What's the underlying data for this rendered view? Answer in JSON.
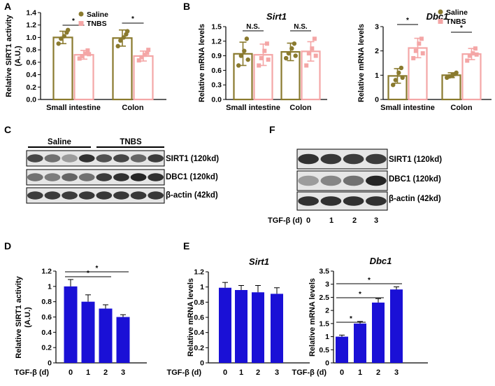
{
  "panels": {
    "A": "A",
    "B": "B",
    "C": "C",
    "D": "D",
    "E": "E",
    "F": "F"
  },
  "colors": {
    "saline": "#8a7a2e",
    "tnbs": "#f4a6a6",
    "bar_blue": "#1a10d6"
  },
  "chart_data": [
    {
      "id": "A",
      "type": "bar",
      "title": "",
      "ylabel": "Relative SIRT1 activity (A.U.)",
      "ylim": [
        0,
        1.4
      ],
      "yticks": [
        "0.0",
        "0.2",
        "0.4",
        "0.6",
        "0.8",
        "1.0",
        "1.2",
        "1.4"
      ],
      "categories": [
        "Small intestine",
        "Colon"
      ],
      "legend": [
        "Saline",
        "TNBS"
      ],
      "series": [
        {
          "name": "Saline",
          "values": [
            1.0,
            0.99
          ],
          "err": [
            0.1,
            0.13
          ],
          "points": [
            [
              0.9,
              0.98,
              1.02,
              1.08,
              1.12
            ],
            [
              0.86,
              0.95,
              1.0,
              1.05,
              1.1
            ]
          ]
        },
        {
          "name": "TNBS",
          "values": [
            0.72,
            0.7
          ],
          "err": [
            0.07,
            0.08
          ],
          "points": [
            [
              0.66,
              0.7,
              0.74,
              0.79,
              0.73
            ],
            [
              0.63,
              0.68,
              0.72,
              0.75,
              0.8
            ]
          ]
        }
      ],
      "significance": [
        "*",
        "*"
      ]
    },
    {
      "id": "B1",
      "type": "bar",
      "title": "Sirt1",
      "ylabel": "Relative mRNA levels",
      "ylim": [
        0,
        1.5
      ],
      "yticks": [
        "0.0",
        "0.3",
        "0.6",
        "0.9",
        "1.2",
        "1.5"
      ],
      "categories": [
        "Small intestine",
        "Colon"
      ],
      "series": [
        {
          "name": "Saline",
          "values": [
            0.94,
            0.98
          ],
          "err": [
            0.24,
            0.18
          ],
          "points": [
            [
              0.7,
              0.9,
              1.0,
              1.25,
              0.82
            ],
            [
              0.85,
              0.95,
              1.05,
              1.15,
              0.9
            ]
          ]
        },
        {
          "name": "TNBS",
          "values": [
            0.92,
            0.99
          ],
          "err": [
            0.22,
            0.2
          ],
          "points": [
            [
              0.7,
              0.85,
              1.0,
              1.15,
              0.82
            ],
            [
              0.7,
              0.95,
              1.05,
              1.25,
              0.9
            ]
          ]
        }
      ],
      "significance": [
        "N.S.",
        "N.S."
      ]
    },
    {
      "id": "B2",
      "type": "bar",
      "title": "Dbc1",
      "ylabel": "Relative mRNA levels",
      "ylim": [
        0,
        3
      ],
      "yticks": [
        "0",
        "1",
        "2",
        "3"
      ],
      "categories": [
        "Small intestine",
        "Colon"
      ],
      "legend": [
        "Saline",
        "TNBS"
      ],
      "series": [
        {
          "name": "Saline",
          "values": [
            0.97,
            1.0
          ],
          "err": [
            0.3,
            0.1
          ],
          "points": [
            [
              0.6,
              0.8,
              1.1,
              1.3,
              0.9
            ],
            [
              0.9,
              0.95,
              1.0,
              1.05,
              1.1
            ]
          ]
        },
        {
          "name": "TNBS",
          "values": [
            2.12,
            1.87
          ],
          "err": [
            0.4,
            0.23
          ],
          "points": [
            [
              1.7,
              2.0,
              2.3,
              2.5,
              1.9
            ],
            [
              1.6,
              1.8,
              1.9,
              2.1,
              1.85
            ]
          ]
        }
      ],
      "significance": [
        "*",
        "*"
      ]
    },
    {
      "id": "D",
      "type": "bar",
      "title": "",
      "ylabel": "Relative SIRT1 activity (A.U.)",
      "xlabel": "TGF-β (d)",
      "ylim": [
        0,
        1.2
      ],
      "yticks": [
        "0",
        "0.2",
        "0.4",
        "0.6",
        "0.8",
        "1",
        "1.2"
      ],
      "categories": [
        "0",
        "1",
        "2",
        "3"
      ],
      "values": [
        1.0,
        0.8,
        0.71,
        0.6
      ],
      "err": [
        0.09,
        0.09,
        0.05,
        0.03
      ],
      "significance": [
        {
          "from": 0,
          "to": 2,
          "label": "*"
        },
        {
          "from": 0,
          "to": 3,
          "label": "*"
        }
      ]
    },
    {
      "id": "E1",
      "type": "bar",
      "title": "Sirt1",
      "ylabel": "Relative mRNA levels",
      "xlabel": "TGF-β (d)",
      "ylim": [
        0,
        1.2
      ],
      "yticks": [
        "0",
        "0.2",
        "0.4",
        "0.6",
        "0.8",
        "1",
        "1.2"
      ],
      "categories": [
        "0",
        "1",
        "2",
        "3"
      ],
      "values": [
        0.99,
        0.96,
        0.93,
        0.91
      ],
      "err": [
        0.07,
        0.06,
        0.09,
        0.08
      ]
    },
    {
      "id": "E2",
      "type": "bar",
      "title": "Dbc1",
      "ylabel": "Relative mRNA levels",
      "xlabel": "TGF-β (d)",
      "ylim": [
        0,
        3.5
      ],
      "yticks": [
        "0",
        "0.5",
        "1",
        "1.5",
        "2",
        "2.5",
        "3",
        "3.5"
      ],
      "categories": [
        "0",
        "1",
        "2",
        "3"
      ],
      "values": [
        1.0,
        1.5,
        2.3,
        2.8
      ],
      "err": [
        0.06,
        0.08,
        0.15,
        0.1
      ],
      "significance": [
        {
          "from": 0,
          "to": 1,
          "label": "*"
        },
        {
          "from": 0,
          "to": 2,
          "label": "*"
        },
        {
          "from": 0,
          "to": 3,
          "label": "*"
        }
      ]
    }
  ],
  "blots": {
    "C": {
      "groups": [
        "Saline",
        "TNBS"
      ],
      "bands": [
        "SIRT1 (120kd)",
        "DBC1 (120kd)",
        "β-actin (42kd)"
      ]
    },
    "F": {
      "bands": [
        "SIRT1 (120kd)",
        "DBC1 (120kd)",
        "β-actin (42kd)"
      ],
      "xlabel": "TGF-β (d)",
      "lanes": [
        "0",
        "1",
        "2",
        "3"
      ]
    }
  }
}
